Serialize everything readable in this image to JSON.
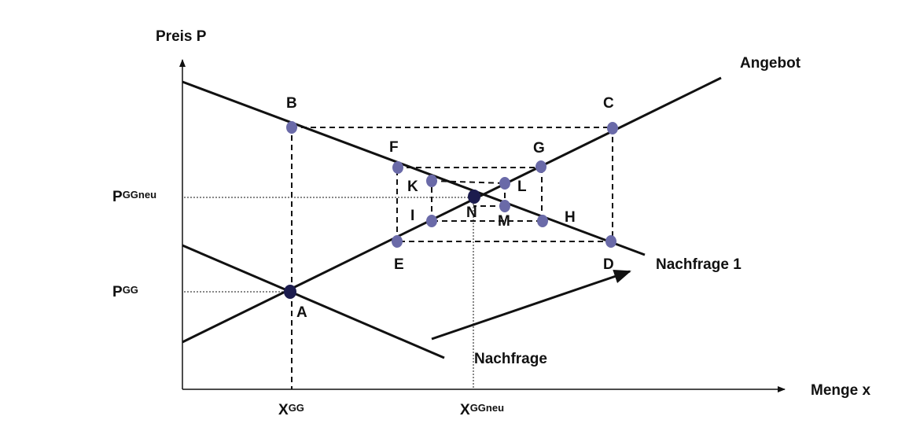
{
  "axes": {
    "y_title": "Preis P",
    "x_title": "Menge x"
  },
  "curves": {
    "supply": "Angebot",
    "demand": "Nachfrage",
    "demand_new": "Nachfrage 1"
  },
  "ticks": {
    "p_gg": {
      "main": "P",
      "sup": "GG"
    },
    "p_ggneu": {
      "main": "P",
      "sup": "GGneu"
    },
    "x_gg": {
      "main": "X",
      "sup": "GG"
    },
    "x_ggneu": {
      "main": "X",
      "sup": "GGneu"
    }
  },
  "points": {
    "A": "A",
    "B": "B",
    "C": "C",
    "D": "D",
    "E": "E",
    "F": "F",
    "G": "G",
    "H": "H",
    "I": "I",
    "K": "K",
    "L": "L",
    "M": "M",
    "N": "N"
  },
  "colors": {
    "line": "#111111",
    "point": "#6a6aa8",
    "equilibrium": "#1c1c4e"
  }
}
